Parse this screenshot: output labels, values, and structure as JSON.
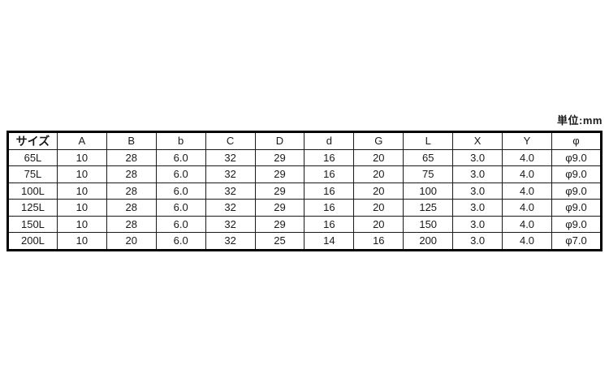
{
  "page": {
    "background": "#ffffff",
    "text_color": "#1a1a1a",
    "border_color": "#000000"
  },
  "unit_label": "単位:mm",
  "table": {
    "columns": [
      "サイズ",
      "A",
      "B",
      "b",
      "C",
      "D",
      "d",
      "G",
      "L",
      "X",
      "Y",
      "φ"
    ],
    "rows": [
      [
        "65L",
        "10",
        "28",
        "6.0",
        "32",
        "29",
        "16",
        "20",
        "65",
        "3.0",
        "4.0",
        "φ9.0"
      ],
      [
        "75L",
        "10",
        "28",
        "6.0",
        "32",
        "29",
        "16",
        "20",
        "75",
        "3.0",
        "4.0",
        "φ9.0"
      ],
      [
        "100L",
        "10",
        "28",
        "6.0",
        "32",
        "29",
        "16",
        "20",
        "100",
        "3.0",
        "4.0",
        "φ9.0"
      ],
      [
        "125L",
        "10",
        "28",
        "6.0",
        "32",
        "29",
        "16",
        "20",
        "125",
        "3.0",
        "4.0",
        "φ9.0"
      ],
      [
        "150L",
        "10",
        "28",
        "6.0",
        "32",
        "29",
        "16",
        "20",
        "150",
        "3.0",
        "4.0",
        "φ9.0"
      ],
      [
        "200L",
        "10",
        "20",
        "6.0",
        "32",
        "25",
        "14",
        "16",
        "200",
        "3.0",
        "4.0",
        "φ7.0"
      ]
    ]
  }
}
